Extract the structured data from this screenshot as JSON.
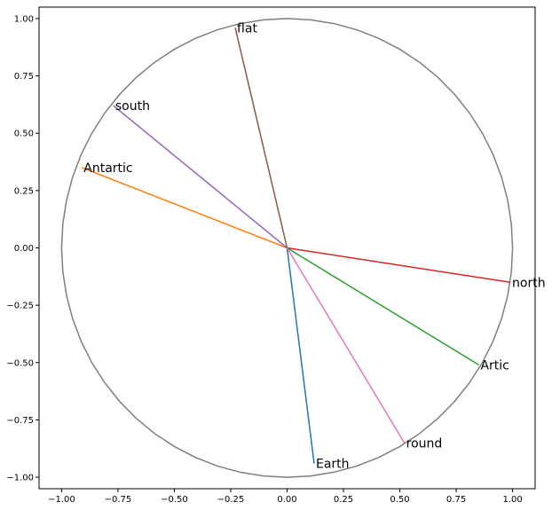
{
  "chart_data": {
    "type": "line",
    "title": "",
    "xlabel": "",
    "ylabel": "",
    "xlim": [
      -1.1,
      1.1
    ],
    "ylim": [
      -1.05,
      1.05
    ],
    "grid": false,
    "x_ticks": [
      -1.0,
      -0.75,
      -0.5,
      -0.25,
      0.0,
      0.25,
      0.5,
      0.75,
      1.0
    ],
    "y_ticks": [
      -1.0,
      -0.75,
      -0.5,
      -0.25,
      0.0,
      0.25,
      0.5,
      0.75,
      1.0
    ],
    "x_tick_labels": [
      "−1.00",
      "−0.75",
      "−0.50",
      "−0.25",
      "0.00",
      "0.25",
      "0.50",
      "0.75",
      "1.00"
    ],
    "y_tick_labels": [
      "−1.00",
      "−0.75",
      "−0.50",
      "−0.25",
      "0.00",
      "0.25",
      "0.50",
      "0.75",
      "1.00"
    ],
    "unit_circle": {
      "radius": 1.0,
      "color": "#7f7f7f"
    },
    "vectors": [
      {
        "label": "Earth",
        "x": 0.12,
        "y": -0.94,
        "color": "#1f77b4"
      },
      {
        "label": "Antartic",
        "x": -0.91,
        "y": 0.35,
        "color": "#ff7f0e"
      },
      {
        "label": "Artic",
        "x": 0.85,
        "y": -0.51,
        "color": "#2ca02c"
      },
      {
        "label": "north",
        "x": 0.99,
        "y": -0.15,
        "color": "#d62728"
      },
      {
        "label": "south",
        "x": -0.77,
        "y": 0.62,
        "color": "#9467bd"
      },
      {
        "label": "flat",
        "x": -0.23,
        "y": 0.96,
        "color": "#8c564b"
      },
      {
        "label": "round",
        "x": 0.52,
        "y": -0.85,
        "color": "#e377c2"
      }
    ]
  }
}
